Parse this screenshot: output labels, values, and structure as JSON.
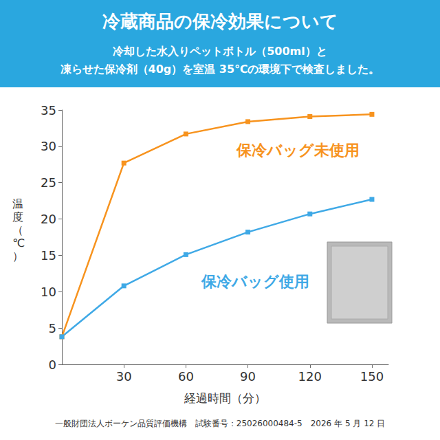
{
  "chart_data": {
    "type": "line",
    "title": "冷蔵商品の保冷効果について",
    "subtitle": [
      "冷却した水入りペットボトル（500ml）と",
      "凍らせた保冷剤（40g）を室温 35℃の環境下で検査しました。"
    ],
    "xlabel": "経過時間（分）",
    "ylabel": "温度（℃）",
    "x": [
      0,
      30,
      60,
      90,
      120,
      150
    ],
    "series": [
      {
        "name": "保冷バッグ未使用",
        "color": "#f7931e",
        "values": [
          3.8,
          27.7,
          31.7,
          33.4,
          34.1,
          34.4
        ]
      },
      {
        "name": "保冷バッグ使用",
        "color": "#3fa9e6",
        "values": [
          3.8,
          10.8,
          15.1,
          18.2,
          20.7,
          22.7
        ]
      }
    ],
    "xlim": [
      0,
      158
    ],
    "xticks": [
      30,
      60,
      90,
      120,
      150
    ],
    "ylim": [
      0,
      35
    ],
    "yticks": [
      0,
      5,
      10,
      15,
      20,
      25,
      30,
      35
    ],
    "grid": false,
    "marker": "square",
    "source": "一般財団法人ボーケン品質評価機構　試験番号：25026000484-5　2026 年 5 月 12 日"
  }
}
